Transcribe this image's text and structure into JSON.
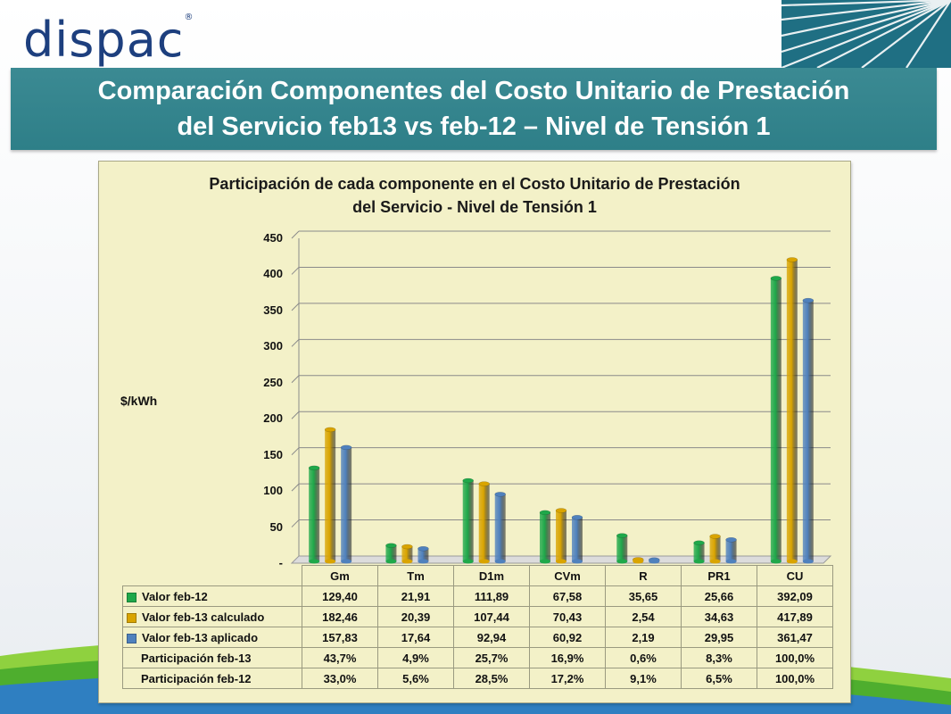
{
  "header": {
    "logo_text": "dispac",
    "title_line1": "Comparación Componentes del Costo Unitario de Prestación",
    "title_line2": "del Servicio feb13 vs feb-12 – Nivel de Tensión 1"
  },
  "chart_data": {
    "type": "bar",
    "title_line1": "Participación de cada componente en el Costo Unitario de Prestación",
    "title_line2": "del Servicio - Nivel de Tensión 1",
    "ylabel": "$/kWh",
    "ylim": [
      0,
      450
    ],
    "yticks": [
      "-",
      "50",
      "100",
      "150",
      "200",
      "250",
      "300",
      "350",
      "400",
      "450"
    ],
    "categories": [
      "Gm",
      "Tm",
      "D1m",
      "CVm",
      "R",
      "PR1",
      "CU"
    ],
    "series": [
      {
        "name": "Valor feb-12",
        "color": "#1fa84a",
        "values": [
          129.4,
          21.91,
          111.89,
          67.58,
          35.65,
          25.66,
          392.09
        ],
        "labels": [
          "129,40",
          "21,91",
          "111,89",
          "67,58",
          "35,65",
          "25,66",
          "392,09"
        ]
      },
      {
        "name": "Valor feb-13 calculado",
        "color": "#d9a400",
        "values": [
          182.46,
          20.39,
          107.44,
          70.43,
          2.54,
          34.63,
          417.89
        ],
        "labels": [
          "182,46",
          "20,39",
          "107,44",
          "70,43",
          "2,54",
          "34,63",
          "417,89"
        ]
      },
      {
        "name": "Valor feb-13 aplicado",
        "color": "#4f81bd",
        "values": [
          157.83,
          17.64,
          92.94,
          60.92,
          2.19,
          29.95,
          361.47
        ],
        "labels": [
          "157,83",
          "17,64",
          "92,94",
          "60,92",
          "2,19",
          "29,95",
          "361,47"
        ]
      }
    ],
    "extra_rows": [
      {
        "name": "Participación feb-13",
        "labels": [
          "43,7%",
          "4,9%",
          "25,7%",
          "16,9%",
          "0,6%",
          "8,3%",
          "100,0%"
        ]
      },
      {
        "name": "Participación feb-12",
        "labels": [
          "33,0%",
          "5,6%",
          "28,5%",
          "17,2%",
          "9,1%",
          "6,5%",
          "100,0%"
        ]
      }
    ],
    "grid": true,
    "legend": "table-bottom"
  }
}
